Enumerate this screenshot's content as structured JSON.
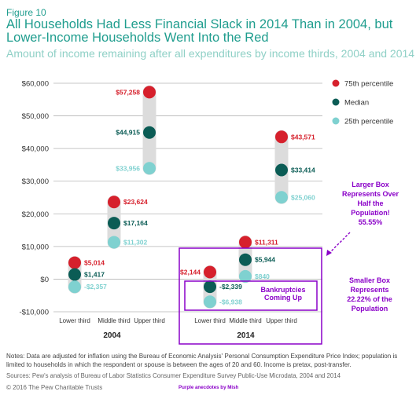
{
  "figure_label": "Figure 10",
  "title": "All Households Had Less Financial Slack in 2014 Than in 2004, but Lower-Income Households Went Into the Red",
  "subtitle": "Amount of income remaining after all expenditures by income thirds, 2004 and 2014",
  "notes": "Notes: Data are adjusted for inflation using the Bureau of Economic Analysis' Personal Consumption Expenditure Price Index; population is limited to households in which the respondent or spouse is between the ages of 20 and 60. Income is pretax, post-transfer.",
  "sources": "Sources: Pew's analysis of Bureau of Labor Statistics Consumer Expenditure Survey Public-Use Microdata, 2004 and 2014",
  "copyright": "© 2016 The Pew Charitable Trusts",
  "credit": "Purple anecdotes by Mish",
  "colors": {
    "p75": "#d6202c",
    "median": "#0b5c55",
    "p25": "#7fd1d0",
    "range_bar": "#dcdcdc",
    "annotation": "#8a00c8"
  },
  "chart_data": {
    "type": "range-dot",
    "ylim": [
      -10000,
      60000
    ],
    "y_ticks": [
      -10000,
      0,
      10000,
      20000,
      30000,
      40000,
      50000,
      60000
    ],
    "y_tick_labels": [
      "-$10,000",
      "$0",
      "$10,000",
      "$20,000",
      "$30,000",
      "$40,000",
      "$50,000",
      "$60,000"
    ],
    "grid": true,
    "legend_position": "top-right",
    "series_names": {
      "p75": "75th percentile",
      "median": "Median",
      "p25": "25th percentile"
    },
    "groups": [
      {
        "year": "2004",
        "categories": [
          {
            "name": "Lower third",
            "p75": 5014,
            "median": 1417,
            "p25": -2357,
            "p75_label": "$5,014",
            "median_label": "$1,417",
            "p25_label": "-$2,357"
          },
          {
            "name": "Middle third",
            "p75": 23624,
            "median": 17164,
            "p25": 11302,
            "p75_label": "$23,624",
            "median_label": "$17,164",
            "p25_label": "$11,302"
          },
          {
            "name": "Upper third",
            "p75": 57258,
            "median": 44915,
            "p25": 33956,
            "p75_label": "$57,258",
            "median_label": "$44,915",
            "p25_label": "$33,956"
          }
        ]
      },
      {
        "year": "2014",
        "categories": [
          {
            "name": "Lower third",
            "p75": 2144,
            "median": -2339,
            "p25": -6938,
            "p75_label": "$2,144",
            "median_label": "-$2,339",
            "p25_label": "-$6,938"
          },
          {
            "name": "Middle third",
            "p75": 11311,
            "median": 5944,
            "p25": 840,
            "p75_label": "$11,311",
            "median_label": "$5,944",
            "p25_label": "$840"
          },
          {
            "name": "Upper third",
            "p75": 43571,
            "median": 33414,
            "p25": 25060,
            "p75_label": "$43,571",
            "median_label": "$33,414",
            "p25_label": "$25,060"
          }
        ]
      }
    ],
    "annotations": {
      "large_box": "Larger Box Represents Over Half the Population! 55.55%",
      "small_box": "Smaller Box Represents 22.22% of the Population",
      "inner_box": "Bankruptcies Coming Up"
    }
  }
}
